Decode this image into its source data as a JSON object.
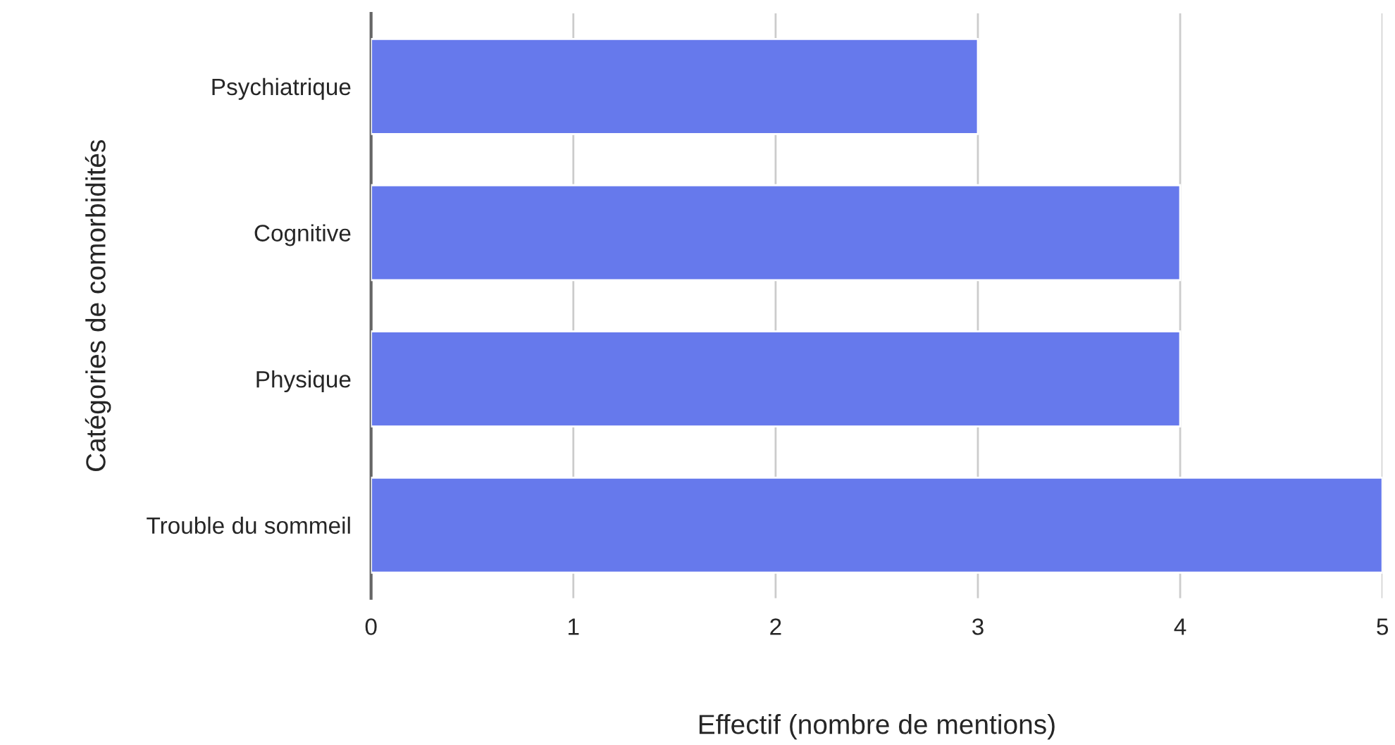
{
  "chart_data": {
    "type": "bar",
    "orientation": "horizontal",
    "categories": [
      "Psychiatrique",
      "Cognitive",
      "Physique",
      "Trouble du sommeil"
    ],
    "values": [
      3,
      4,
      4,
      5
    ],
    "color": "#6679ec",
    "xlim": [
      0,
      5
    ],
    "xticks": [
      0,
      1,
      2,
      3,
      4,
      5
    ],
    "grid": "x",
    "xlabel": "Effectif (nombre de mentions)",
    "ylabel": "Catégories de comorbidités",
    "legend": false
  }
}
